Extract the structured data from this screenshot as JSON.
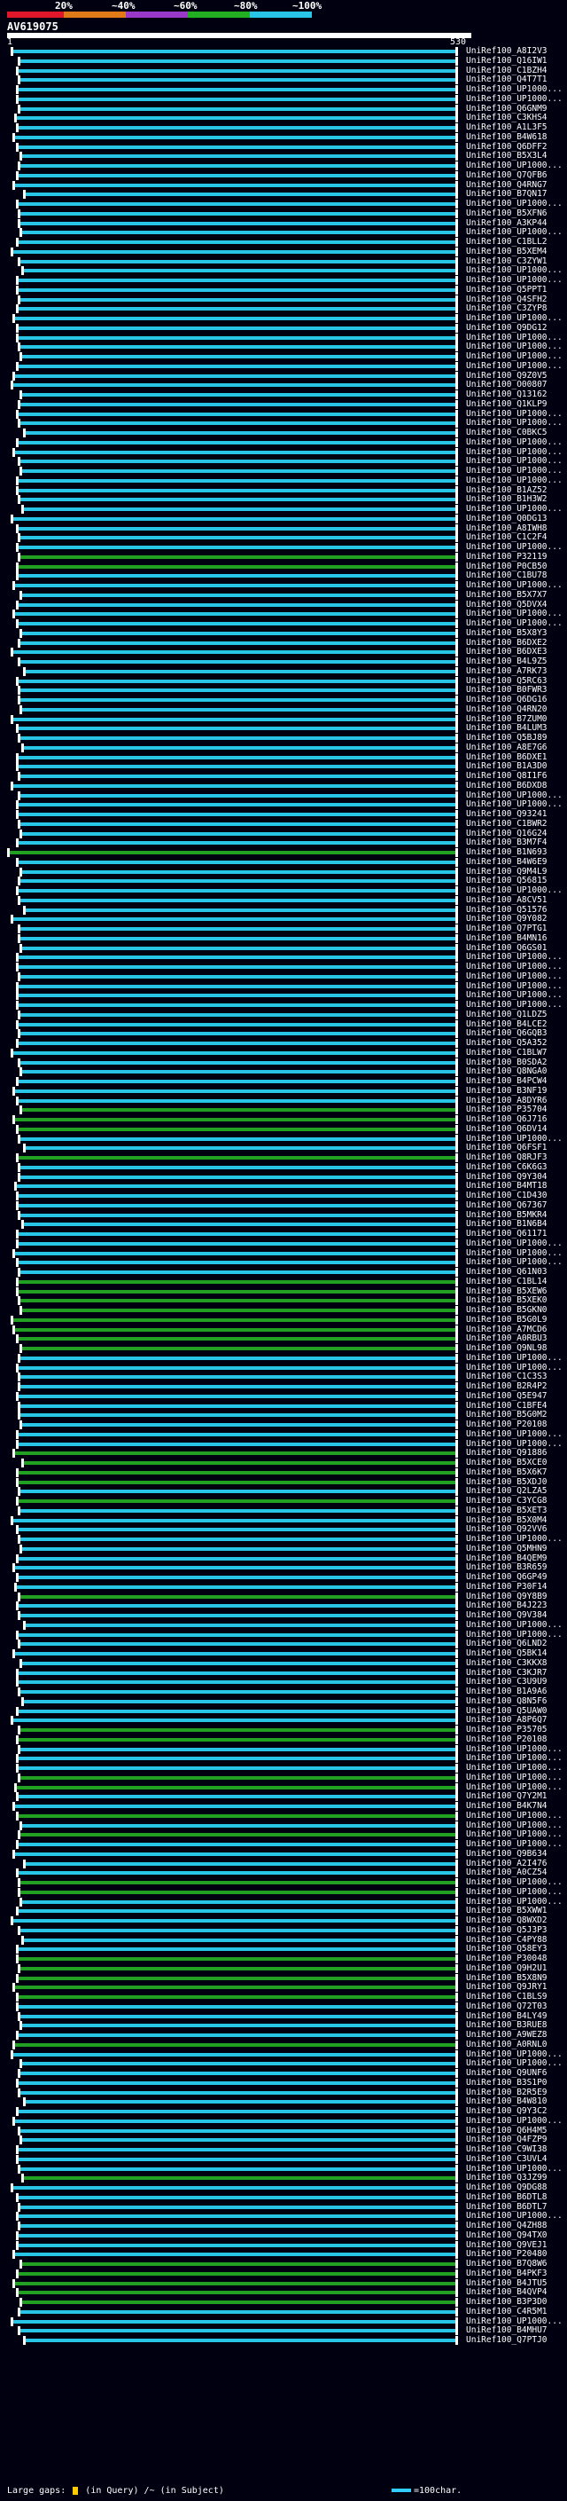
{
  "header": {
    "query_id": "AV619075",
    "start_pos": "1",
    "end_pos": "530",
    "percent_labels": [
      "20%",
      "~40%",
      "~60%",
      "~80%",
      "~100%"
    ],
    "scale_colors": [
      "#e0162b",
      "#e07a18",
      "#9a38c9",
      "#22b022",
      "#29c5e6"
    ]
  },
  "footer": {
    "large_gaps_label": "Large gaps:",
    "in_query_label": "(in Query)",
    "in_subject_label": "/~ (in Subject)",
    "scale_label": "=100char."
  },
  "colors": {
    "background": "#000010",
    "cyan": "#29c5e6",
    "green": "#22a022",
    "tick": "#ffffff"
  },
  "hits": [
    {
      "label": "UniRef100_A8I2V3",
      "color": "cyan"
    },
    {
      "label": "UniRef100_Q16IW1",
      "color": "cyan"
    },
    {
      "label": "UniRef100_C1BZH4",
      "color": "cyan"
    },
    {
      "label": "UniRef100_Q4T7T1",
      "color": "cyan"
    },
    {
      "label": "UniRef100_UP1000...",
      "color": "cyan"
    },
    {
      "label": "UniRef100_UP1000...",
      "color": "cyan"
    },
    {
      "label": "UniRef100_Q6GNM9",
      "color": "cyan"
    },
    {
      "label": "UniRef100_C3KHS4",
      "color": "cyan"
    },
    {
      "label": "UniRef100_A1L3F5",
      "color": "cyan"
    },
    {
      "label": "UniRef100_B4W618",
      "color": "cyan"
    },
    {
      "label": "UniRef100_Q6DFF2",
      "color": "cyan"
    },
    {
      "label": "UniRef100_B5X3L4",
      "color": "cyan"
    },
    {
      "label": "UniRef100_UP1000...",
      "color": "cyan"
    },
    {
      "label": "UniRef100_Q7QFB6",
      "color": "cyan"
    },
    {
      "label": "UniRef100_Q4RNG7",
      "color": "cyan"
    },
    {
      "label": "UniRef100_B7QN17",
      "color": "cyan"
    },
    {
      "label": "UniRef100_UP1000...",
      "color": "cyan"
    },
    {
      "label": "UniRef100_B5XFN6",
      "color": "cyan"
    },
    {
      "label": "UniRef100_A3KP44",
      "color": "cyan"
    },
    {
      "label": "UniRef100_UP1000...",
      "color": "cyan"
    },
    {
      "label": "UniRef100_C1BLL2",
      "color": "cyan"
    },
    {
      "label": "UniRef100_B5XEM4",
      "color": "cyan"
    },
    {
      "label": "UniRef100_C3ZYW1",
      "color": "cyan"
    },
    {
      "label": "UniRef100_UP1000...",
      "color": "cyan"
    },
    {
      "label": "UniRef100_UP1000...",
      "color": "cyan"
    },
    {
      "label": "UniRef100_Q5PPT1",
      "color": "cyan"
    },
    {
      "label": "UniRef100_Q4SFH2",
      "color": "cyan"
    },
    {
      "label": "UniRef100_C3ZYP8",
      "color": "cyan"
    },
    {
      "label": "UniRef100_UP1000...",
      "color": "cyan"
    },
    {
      "label": "UniRef100_Q9DG12",
      "color": "cyan"
    },
    {
      "label": "UniRef100_UP1000...",
      "color": "cyan"
    },
    {
      "label": "UniRef100_UP1000...",
      "color": "cyan"
    },
    {
      "label": "UniRef100_UP1000...",
      "color": "cyan"
    },
    {
      "label": "UniRef100_UP1000...",
      "color": "cyan"
    },
    {
      "label": "UniRef100_Q9Z0V5",
      "color": "cyan"
    },
    {
      "label": "UniRef100_O00807",
      "color": "cyan"
    },
    {
      "label": "UniRef100_Q13162",
      "color": "cyan"
    },
    {
      "label": "UniRef100_Q1KLP9",
      "color": "cyan"
    },
    {
      "label": "UniRef100_UP1000...",
      "color": "cyan"
    },
    {
      "label": "UniRef100_UP1000...",
      "color": "cyan"
    },
    {
      "label": "UniRef100_C0BKC5",
      "color": "cyan"
    },
    {
      "label": "UniRef100_UP1000...",
      "color": "cyan"
    },
    {
      "label": "UniRef100_UP1000...",
      "color": "cyan"
    },
    {
      "label": "UniRef100_UP1000...",
      "color": "cyan"
    },
    {
      "label": "UniRef100_UP1000...",
      "color": "cyan"
    },
    {
      "label": "UniRef100_UP1000...",
      "color": "cyan"
    },
    {
      "label": "UniRef100_B1AZ52",
      "color": "cyan"
    },
    {
      "label": "UniRef100_B1H3W2",
      "color": "cyan"
    },
    {
      "label": "UniRef100_UP1000...",
      "color": "cyan"
    },
    {
      "label": "UniRef100_Q0DG13",
      "color": "cyan"
    },
    {
      "label": "UniRef100_A8IWH8",
      "color": "cyan"
    },
    {
      "label": "UniRef100_C1C2F4",
      "color": "cyan"
    },
    {
      "label": "UniRef100_UP1000...",
      "color": "cyan"
    },
    {
      "label": "UniRef100_P32119",
      "color": "green"
    },
    {
      "label": "UniRef100_P0CB50",
      "color": "green"
    },
    {
      "label": "UniRef100_C1BU78",
      "color": "cyan"
    },
    {
      "label": "UniRef100_UP1000...",
      "color": "cyan"
    },
    {
      "label": "UniRef100_B5X7X7",
      "color": "cyan"
    },
    {
      "label": "UniRef100_Q5DVX4",
      "color": "cyan"
    },
    {
      "label": "UniRef100_UP1000...",
      "color": "cyan"
    },
    {
      "label": "UniRef100_UP1000...",
      "color": "cyan"
    },
    {
      "label": "UniRef100_B5X8Y3",
      "color": "cyan"
    },
    {
      "label": "UniRef100_B6DXE2",
      "color": "cyan"
    },
    {
      "label": "UniRef100_B6DXE3",
      "color": "cyan"
    },
    {
      "label": "UniRef100_B4L9Z5",
      "color": "cyan"
    },
    {
      "label": "UniRef100_A7RK73",
      "color": "cyan"
    },
    {
      "label": "UniRef100_Q5RC63",
      "color": "cyan"
    },
    {
      "label": "UniRef100_B0FWR3",
      "color": "cyan"
    },
    {
      "label": "UniRef100_Q6DG16",
      "color": "cyan"
    },
    {
      "label": "UniRef100_Q4RN20",
      "color": "cyan"
    },
    {
      "label": "UniRef100_B7ZUM0",
      "color": "cyan"
    },
    {
      "label": "UniRef100_B4LUM3",
      "color": "cyan"
    },
    {
      "label": "UniRef100_Q5BJ89",
      "color": "cyan"
    },
    {
      "label": "UniRef100_A8E7G6",
      "color": "cyan"
    },
    {
      "label": "UniRef100_B6DXE1",
      "color": "cyan"
    },
    {
      "label": "UniRef100_B1A3D0",
      "color": "cyan"
    },
    {
      "label": "UniRef100_Q8I1F6",
      "color": "cyan"
    },
    {
      "label": "UniRef100_B6DXD8",
      "color": "cyan"
    },
    {
      "label": "UniRef100_UP1000...",
      "color": "cyan"
    },
    {
      "label": "UniRef100_UP1000...",
      "color": "cyan"
    },
    {
      "label": "UniRef100_Q93241",
      "color": "cyan"
    },
    {
      "label": "UniRef100_C1BWR2",
      "color": "cyan"
    },
    {
      "label": "UniRef100_Q16G24",
      "color": "cyan"
    },
    {
      "label": "UniRef100_B3M7F4",
      "color": "cyan"
    },
    {
      "label": "UniRef100_B1N693",
      "color": "green"
    },
    {
      "label": "UniRef100_B4W6E9",
      "color": "cyan"
    },
    {
      "label": "UniRef100_Q9M4L9",
      "color": "cyan"
    },
    {
      "label": "UniRef100_Q56815",
      "color": "cyan"
    },
    {
      "label": "UniRef100_UP1000...",
      "color": "cyan"
    },
    {
      "label": "UniRef100_A8CV51",
      "color": "cyan"
    },
    {
      "label": "UniRef100_Q51576",
      "color": "cyan"
    },
    {
      "label": "UniRef100_Q9Y082",
      "color": "cyan"
    },
    {
      "label": "UniRef100_Q7PTG1",
      "color": "cyan"
    },
    {
      "label": "UniRef100_B4MN16",
      "color": "cyan"
    },
    {
      "label": "UniRef100_Q6GS01",
      "color": "cyan"
    },
    {
      "label": "UniRef100_UP1000...",
      "color": "cyan"
    },
    {
      "label": "UniRef100_UP1000...",
      "color": "cyan"
    },
    {
      "label": "UniRef100_UP1000...",
      "color": "cyan"
    },
    {
      "label": "UniRef100_UP1000...",
      "color": "cyan"
    },
    {
      "label": "UniRef100_UP1000...",
      "color": "cyan"
    },
    {
      "label": "UniRef100_UP1000...",
      "color": "cyan"
    },
    {
      "label": "UniRef100_Q1LDZ5",
      "color": "cyan"
    },
    {
      "label": "UniRef100_B4LCE2",
      "color": "cyan"
    },
    {
      "label": "UniRef100_Q6GQB3",
      "color": "cyan"
    },
    {
      "label": "UniRef100_Q5A352",
      "color": "cyan"
    },
    {
      "label": "UniRef100_C1BLW7",
      "color": "cyan"
    },
    {
      "label": "UniRef100_B0SDA2",
      "color": "cyan"
    },
    {
      "label": "UniRef100_Q8NGA0",
      "color": "cyan"
    },
    {
      "label": "UniRef100_B4PCW4",
      "color": "cyan"
    },
    {
      "label": "UniRef100_B3NF19",
      "color": "cyan"
    },
    {
      "label": "UniRef100_A8DYR6",
      "color": "cyan"
    },
    {
      "label": "UniRef100_P35704",
      "color": "green"
    },
    {
      "label": "UniRef100_Q6J716",
      "color": "green"
    },
    {
      "label": "UniRef100_Q6DV14",
      "color": "green"
    },
    {
      "label": "UniRef100_UP1000...",
      "color": "cyan"
    },
    {
      "label": "UniRef100_Q6FSF1",
      "color": "cyan"
    },
    {
      "label": "UniRef100_Q8RJF3",
      "color": "green"
    },
    {
      "label": "UniRef100_C6K6G3",
      "color": "cyan"
    },
    {
      "label": "UniRef100_Q9Y304",
      "color": "cyan"
    },
    {
      "label": "UniRef100_B4MT18",
      "color": "cyan"
    },
    {
      "label": "UniRef100_C1D430",
      "color": "cyan"
    },
    {
      "label": "UniRef100_Q67367",
      "color": "cyan"
    },
    {
      "label": "UniRef100_B5MKR4",
      "color": "cyan"
    },
    {
      "label": "UniRef100_B1N6B4",
      "color": "cyan"
    },
    {
      "label": "UniRef100_Q61171",
      "color": "cyan"
    },
    {
      "label": "UniRef100_UP1000...",
      "color": "cyan"
    },
    {
      "label": "UniRef100_UP1000...",
      "color": "cyan"
    },
    {
      "label": "UniRef100_UP1000...",
      "color": "cyan"
    },
    {
      "label": "UniRef100_Q61N03",
      "color": "cyan"
    },
    {
      "label": "UniRef100_C1BL14",
      "color": "green"
    },
    {
      "label": "UniRef100_B5XEW6",
      "color": "green"
    },
    {
      "label": "UniRef100_B5XEK0",
      "color": "green"
    },
    {
      "label": "UniRef100_B5GKN0",
      "color": "green"
    },
    {
      "label": "UniRef100_B5G0L9",
      "color": "green"
    },
    {
      "label": "UniRef100_A7MCD6",
      "color": "green"
    },
    {
      "label": "UniRef100_A0RBU3",
      "color": "green"
    },
    {
      "label": "UniRef100_Q9NL98",
      "color": "green"
    },
    {
      "label": "UniRef100_UP1000...",
      "color": "cyan"
    },
    {
      "label": "UniRef100_UP1000...",
      "color": "cyan"
    },
    {
      "label": "UniRef100_C1C3S3",
      "color": "cyan"
    },
    {
      "label": "UniRef100_B2R4P2",
      "color": "cyan"
    },
    {
      "label": "UniRef100_Q5E947",
      "color": "cyan"
    },
    {
      "label": "UniRef100_C1BFE4",
      "color": "cyan"
    },
    {
      "label": "UniRef100_B5G0M2",
      "color": "cyan"
    },
    {
      "label": "UniRef100_P20108",
      "color": "cyan"
    },
    {
      "label": "UniRef100_UP1000...",
      "color": "cyan"
    },
    {
      "label": "UniRef100_UP1000...",
      "color": "cyan"
    },
    {
      "label": "UniRef100_Q91886",
      "color": "green"
    },
    {
      "label": "UniRef100_B5XCE0",
      "color": "green"
    },
    {
      "label": "UniRef100_B5X6K7",
      "color": "green"
    },
    {
      "label": "UniRef100_B5XDJ0",
      "color": "green"
    },
    {
      "label": "UniRef100_Q2LZA5",
      "color": "cyan"
    },
    {
      "label": "UniRef100_C3YCG8",
      "color": "green"
    },
    {
      "label": "UniRef100_B5XET3",
      "color": "cyan"
    },
    {
      "label": "UniRef100_B5X0M4",
      "color": "cyan"
    },
    {
      "label": "UniRef100_Q92VV6",
      "color": "cyan"
    },
    {
      "label": "UniRef100_UP1000...",
      "color": "cyan"
    },
    {
      "label": "UniRef100_Q5MHN9",
      "color": "cyan"
    },
    {
      "label": "UniRef100_B4QEM9",
      "color": "cyan"
    },
    {
      "label": "UniRef100_B3R659",
      "color": "cyan"
    },
    {
      "label": "UniRef100_Q6GP49",
      "color": "cyan"
    },
    {
      "label": "UniRef100_P30F14",
      "color": "cyan"
    },
    {
      "label": "UniRef100_Q9Y8B9",
      "color": "green"
    },
    {
      "label": "UniRef100_B4J223",
      "color": "cyan"
    },
    {
      "label": "UniRef100_Q9V384",
      "color": "cyan"
    },
    {
      "label": "UniRef100_UP1000...",
      "color": "cyan"
    },
    {
      "label": "UniRef100_UP1000...",
      "color": "cyan"
    },
    {
      "label": "UniRef100_Q6LND2",
      "color": "cyan"
    },
    {
      "label": "UniRef100_Q5BK14",
      "color": "cyan"
    },
    {
      "label": "UniRef100_C3KKX8",
      "color": "cyan"
    },
    {
      "label": "UniRef100_C3KJR7",
      "color": "cyan"
    },
    {
      "label": "UniRef100_C3U9U9",
      "color": "cyan"
    },
    {
      "label": "UniRef100_B1A9A6",
      "color": "cyan"
    },
    {
      "label": "UniRef100_Q8N5F6",
      "color": "cyan"
    },
    {
      "label": "UniRef100_Q5UAW0",
      "color": "cyan"
    },
    {
      "label": "UniRef100_A8P6Q7",
      "color": "cyan"
    },
    {
      "label": "UniRef100_P35705",
      "color": "green"
    },
    {
      "label": "UniRef100_P20108",
      "color": "green"
    },
    {
      "label": "UniRef100_UP1000...",
      "color": "cyan"
    },
    {
      "label": "UniRef100_UP1000...",
      "color": "cyan"
    },
    {
      "label": "UniRef100_UP1000...",
      "color": "cyan"
    },
    {
      "label": "UniRef100_UP1000...",
      "color": "green"
    },
    {
      "label": "UniRef100_UP1000...",
      "color": "green"
    },
    {
      "label": "UniRef100_Q7Y2M1",
      "color": "cyan"
    },
    {
      "label": "UniRef100_B4K7N4",
      "color": "cyan"
    },
    {
      "label": "UniRef100_UP1000...",
      "color": "green"
    },
    {
      "label": "UniRef100_UP1000...",
      "color": "cyan"
    },
    {
      "label": "UniRef100_UP1000...",
      "color": "green"
    },
    {
      "label": "UniRef100_UP1000...",
      "color": "cyan"
    },
    {
      "label": "UniRef100_Q9B634",
      "color": "cyan"
    },
    {
      "label": "UniRef100_A2I476",
      "color": "cyan"
    },
    {
      "label": "UniRef100_A0CZ54",
      "color": "cyan"
    },
    {
      "label": "UniRef100_UP1000...",
      "color": "green"
    },
    {
      "label": "UniRef100_UP1000...",
      "color": "green"
    },
    {
      "label": "UniRef100_UP1000...",
      "color": "cyan"
    },
    {
      "label": "UniRef100_B5XWW1",
      "color": "cyan"
    },
    {
      "label": "UniRef100_Q8WXD2",
      "color": "cyan"
    },
    {
      "label": "UniRef100_Q5J3P3",
      "color": "cyan"
    },
    {
      "label": "UniRef100_C4PY88",
      "color": "cyan"
    },
    {
      "label": "UniRef100_Q58EY3",
      "color": "cyan"
    },
    {
      "label": "UniRef100_P30048",
      "color": "green"
    },
    {
      "label": "UniRef100_Q9H2U1",
      "color": "green"
    },
    {
      "label": "UniRef100_B5X8N9",
      "color": "green"
    },
    {
      "label": "UniRef100_Q9JRY1",
      "color": "green"
    },
    {
      "label": "UniRef100_C1BLS9",
      "color": "green"
    },
    {
      "label": "UniRef100_Q72T03",
      "color": "cyan"
    },
    {
      "label": "UniRef100_B4LY49",
      "color": "cyan"
    },
    {
      "label": "UniRef100_B3RUE8",
      "color": "cyan"
    },
    {
      "label": "UniRef100_A9WEZ8",
      "color": "cyan"
    },
    {
      "label": "UniRef100_A0RNL0",
      "color": "green"
    },
    {
      "label": "UniRef100_UP1000...",
      "color": "cyan"
    },
    {
      "label": "UniRef100_UP1000...",
      "color": "cyan"
    },
    {
      "label": "UniRef100_Q9UNF6",
      "color": "cyan"
    },
    {
      "label": "UniRef100_B3S1P0",
      "color": "cyan"
    },
    {
      "label": "UniRef100_B2R5E9",
      "color": "cyan"
    },
    {
      "label": "UniRef100_B4W810",
      "color": "cyan"
    },
    {
      "label": "UniRef100_Q9Y3C2",
      "color": "cyan"
    },
    {
      "label": "UniRef100_UP1000...",
      "color": "cyan"
    },
    {
      "label": "UniRef100_Q6H4M5",
      "color": "cyan"
    },
    {
      "label": "UniRef100_Q4FZP9",
      "color": "cyan"
    },
    {
      "label": "UniRef100_C9WI38",
      "color": "cyan"
    },
    {
      "label": "UniRef100_C3UVL4",
      "color": "cyan"
    },
    {
      "label": "UniRef100_UP1000...",
      "color": "cyan"
    },
    {
      "label": "UniRef100_Q3JZ99",
      "color": "green"
    },
    {
      "label": "UniRef100_Q9DG88",
      "color": "cyan"
    },
    {
      "label": "UniRef100_B6DTL8",
      "color": "cyan"
    },
    {
      "label": "UniRef100_B6DTL7",
      "color": "cyan"
    },
    {
      "label": "UniRef100_UP1000...",
      "color": "cyan"
    },
    {
      "label": "UniRef100_Q4ZH88",
      "color": "cyan"
    },
    {
      "label": "UniRef100_Q94TX0",
      "color": "cyan"
    },
    {
      "label": "UniRef100_Q9VEJ1",
      "color": "cyan"
    },
    {
      "label": "UniRef100_P20480",
      "color": "cyan"
    },
    {
      "label": "UniRef100_B7Q8W6",
      "color": "green"
    },
    {
      "label": "UniRef100_B4PKF3",
      "color": "green"
    },
    {
      "label": "UniRef100_B4JTU5",
      "color": "green"
    },
    {
      "label": "UniRef100_B4QVP4",
      "color": "green"
    },
    {
      "label": "UniRef100_B3P3D0",
      "color": "green"
    },
    {
      "label": "UniRef100_C4R5M1",
      "color": "cyan"
    },
    {
      "label": "UniRef100_UP1000...",
      "color": "cyan"
    },
    {
      "label": "UniRef100_B4MHU7",
      "color": "cyan"
    },
    {
      "label": "UniRef100_Q7PTJ0",
      "color": "cyan"
    }
  ]
}
